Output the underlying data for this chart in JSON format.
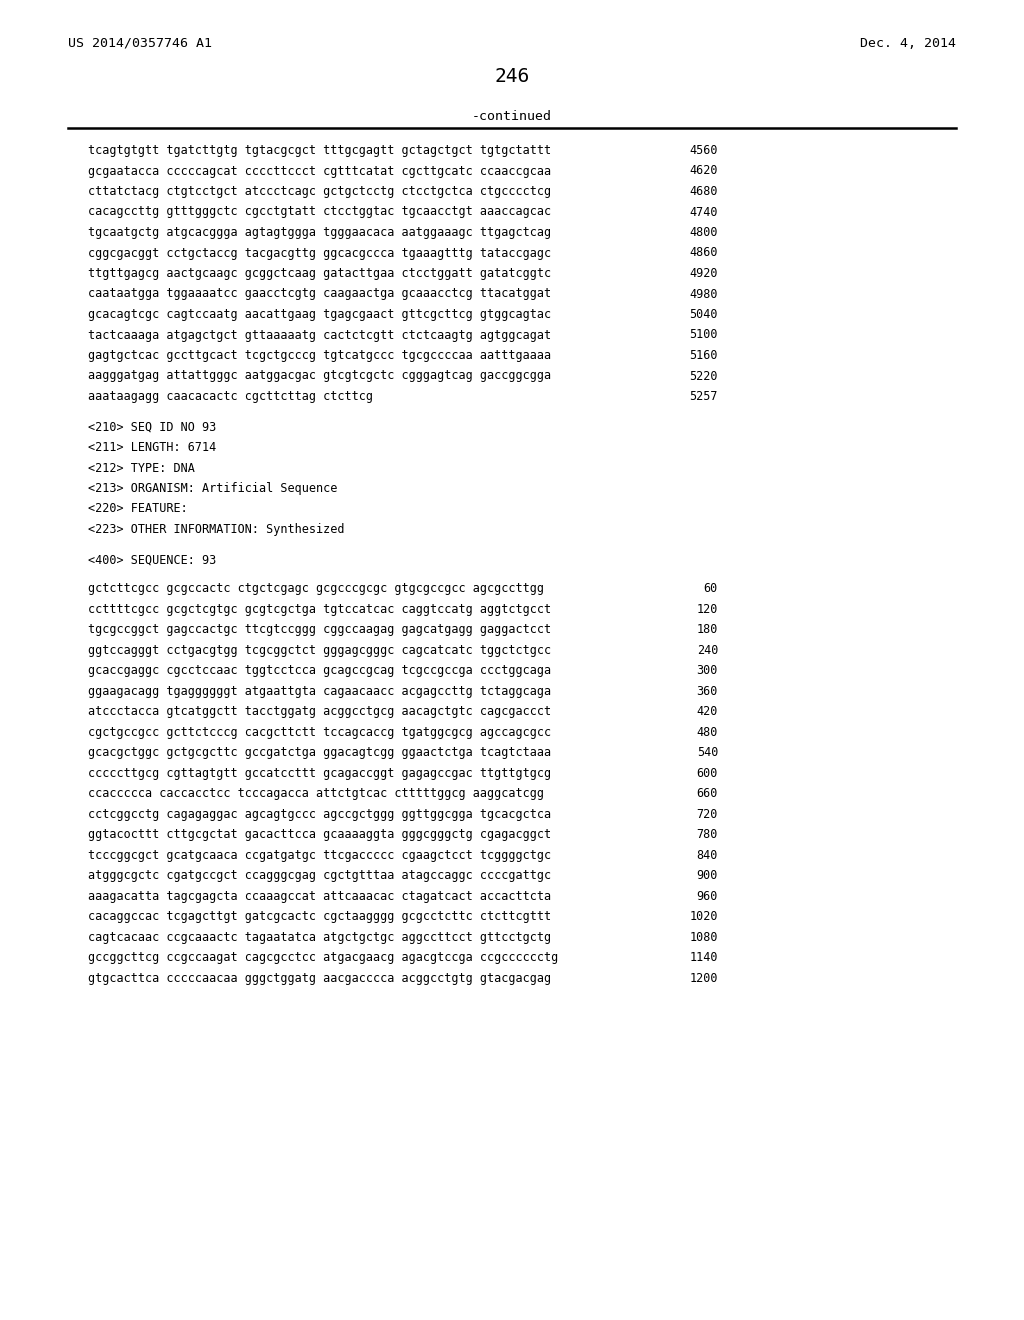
{
  "header_left": "US 2014/0357746 A1",
  "header_right": "Dec. 4, 2014",
  "page_number": "246",
  "continued_text": "-continued",
  "background_color": "#ffffff",
  "text_color": "#000000",
  "sequence_lines_top": [
    [
      "tcagtgtgtt tgatcttgtg tgtacgcgct tttgcgagtt gctagctgct tgtgctattt",
      "4560"
    ],
    [
      "gcgaatacca cccccagcat ccccttccct cgtttcatat cgcttgcatc ccaaccgcaa",
      "4620"
    ],
    [
      "cttatctacg ctgtcctgct atccctcagc gctgctcctg ctcctgctca ctgcccctcg",
      "4680"
    ],
    [
      "cacagccttg gtttgggctc cgcctgtatt ctcctggtac tgcaacctgt aaaccagcac",
      "4740"
    ],
    [
      "tgcaatgctg atgcacggga agtagtggga tgggaacaca aatggaaagc ttgagctcag",
      "4800"
    ],
    [
      "cggcgacggt cctgctaccg tacgacgttg ggcacgccca tgaaagtttg tataccgagc",
      "4860"
    ],
    [
      "ttgttgagcg aactgcaagc gcggctcaag gatacttgaa ctcctggatt gatatcggtc",
      "4920"
    ],
    [
      "caataatgga tggaaaatcc gaacctcgtg caagaactga gcaaacctcg ttacatggat",
      "4980"
    ],
    [
      "gcacagtcgc cagtccaatg aacattgaag tgagcgaact gttcgcttcg gtggcagtac",
      "5040"
    ],
    [
      "tactcaaaga atgagctgct gttaaaaatg cactctcgtt ctctcaagtg agtggcagat",
      "5100"
    ],
    [
      "gagtgctcac gccttgcact tcgctgcccg tgtcatgccc tgcgccccaa aatttgaaaa",
      "5160"
    ],
    [
      "aagggatgag attattgggc aatggacgac gtcgtcgctc cgggagtcag gaccggcgga",
      "5220"
    ],
    [
      "aaataagagg caacacactc cgcttcttag ctcttcg",
      "5257"
    ]
  ],
  "metadata_lines": [
    "<210> SEQ ID NO 93",
    "<211> LENGTH: 6714",
    "<212> TYPE: DNA",
    "<213> ORGANISM: Artificial Sequence",
    "<220> FEATURE:",
    "<223> OTHER INFORMATION: Synthesized",
    "",
    "<400> SEQUENCE: 93"
  ],
  "sequence_lines_bottom": [
    [
      "gctcttcgcc gcgccactc ctgctcgagc gcgcccgcgc gtgcgccgcc agcgccttgg",
      "60"
    ],
    [
      "ccttttcgcc gcgctcgtgc gcgtcgctga tgtccatcac caggtccatg aggtctgcct",
      "120"
    ],
    [
      "tgcgccggct gagccactgc ttcgtccggg cggccaagag gagcatgagg gaggactcct",
      "180"
    ],
    [
      "ggtccagggt cctgacgtgg tcgcggctct gggagcgggc cagcatcatc tggctctgcc",
      "240"
    ],
    [
      "gcaccgaggc cgcctccaac tggtcctcca gcagccgcag tcgccgccga ccctggcaga",
      "300"
    ],
    [
      "ggaagacagg tgaggggggt atgaattgta cagaacaacc acgagccttg tctaggcaga",
      "360"
    ],
    [
      "atccctacca gtcatggctt tacctggatg acggcctgcg aacagctgtc cagcgaccct",
      "420"
    ],
    [
      "cgctgccgcc gcttctcccg cacgcttctt tccagcaccg tgatggcgcg agccagcgcc",
      "480"
    ],
    [
      "gcacgctggc gctgcgcttc gccgatctga ggacagtcgg ggaactctga tcagtctaaa",
      "540"
    ],
    [
      "cccccttgcg cgttagtgtt gccatccttt gcagaccggt gagagccgac ttgttgtgcg",
      "600"
    ],
    [
      "ccaccccca caccacctcc tcccagacca attctgtcac ctttttggcg aaggcatcgg",
      "660"
    ],
    [
      "cctcggcctg cagagaggac agcagtgccc agccgctggg ggttggcgga tgcacgctca",
      "720"
    ],
    [
      "ggtacocttt cttgcgctat gacacttcca gcaaaaggta gggcgggctg cgagacggct",
      "780"
    ],
    [
      "tcccggcgct gcatgcaaca ccgatgatgc ttcgaccccc cgaagctcct tcggggctgc",
      "840"
    ],
    [
      "atgggcgctc cgatgccgct ccagggcgag cgctgtttaa atagccaggc ccccgattgc",
      "900"
    ],
    [
      "aaagacatta tagcgagcta ccaaagccat attcaaacac ctagatcact accacttcta",
      "960"
    ],
    [
      "cacaggccac tcgagcttgt gatcgcactc cgctaagggg gcgcctcttc ctcttcgttt",
      "1020"
    ],
    [
      "cagtcacaac ccgcaaactc tagaatatca atgctgctgc aggccttcct gttcctgctg",
      "1080"
    ],
    [
      "gccggcttcg ccgccaagat cagcgcctcc atgacgaacg agacgtccga ccgcccccctg",
      "1140"
    ],
    [
      "gtgcacttca cccccaacaa gggctggatg aacgacccca acggcctgtg gtacgacgag",
      "1200"
    ]
  ]
}
